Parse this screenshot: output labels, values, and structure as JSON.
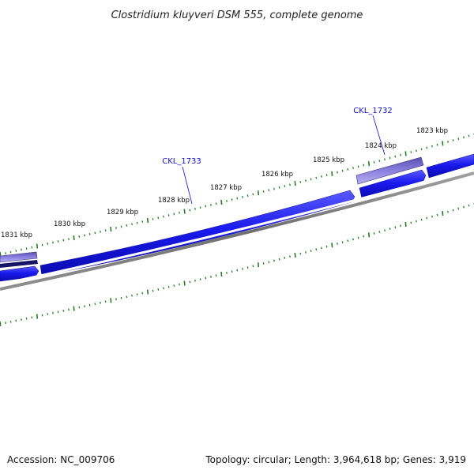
{
  "title": "Clostridium kluyveri DSM 555, complete genome",
  "accession_text": "Accession: NC_009706",
  "summary_text": "Topology: circular; Length: 3,964,618 bp; Genes: 3,919",
  "colors": {
    "gene_forward": "#1a1aee",
    "gene_highlight": "#6a5fcf",
    "gene_dark": "#141466",
    "backbone": "#808080",
    "ticks": "#2a7a2a",
    "callout": "#1010c8"
  },
  "ruler": {
    "unit": "kbp",
    "labels": [
      {
        "text": "1831 kbp",
        "kbp": 1831
      },
      {
        "text": "1830 kbp",
        "kbp": 1830
      },
      {
        "text": "1829 kbp",
        "kbp": 1829
      },
      {
        "text": "1828 kbp",
        "kbp": 1828
      },
      {
        "text": "1827 kbp",
        "kbp": 1827
      },
      {
        "text": "1826 kbp",
        "kbp": 1826
      },
      {
        "text": "1825 kbp",
        "kbp": 1825
      },
      {
        "text": "1824 kbp",
        "kbp": 1824
      },
      {
        "text": "1823 kbp",
        "kbp": 1823
      }
    ]
  },
  "gene_labels": [
    {
      "text": "CKL_1733"
    },
    {
      "text": "CKL_1732"
    }
  ]
}
